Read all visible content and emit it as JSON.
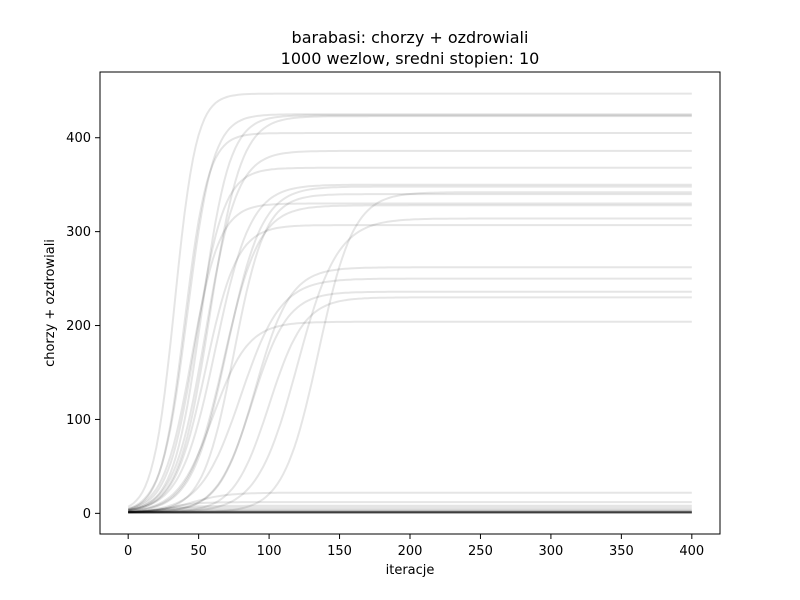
{
  "chart_data": {
    "type": "line",
    "title": [
      "barabasi: chorzy + ozdrowiali",
      "1000 wezlow, sredni stopien: 10"
    ],
    "xlabel": "iteracje",
    "ylabel": "chorzy + ozdrowiali",
    "xlim": [
      -20,
      420
    ],
    "ylim": [
      -22,
      470
    ],
    "xticks": [
      0,
      50,
      100,
      150,
      200,
      250,
      300,
      350,
      400
    ],
    "yticks": [
      0,
      100,
      200,
      300,
      400
    ],
    "grid": false,
    "legend": "none",
    "line_color": "#000000",
    "line_alpha": 0.1,
    "n_points": 400,
    "series": [
      {
        "final": 447,
        "midpoint": 33,
        "rate": 0.13
      },
      {
        "final": 425,
        "midpoint": 42,
        "rate": 0.11
      },
      {
        "final": 423,
        "midpoint": 58,
        "rate": 0.09
      },
      {
        "final": 424,
        "midpoint": 52,
        "rate": 0.1
      },
      {
        "final": 405,
        "midpoint": 40,
        "rate": 0.12
      },
      {
        "final": 386,
        "midpoint": 55,
        "rate": 0.09
      },
      {
        "final": 368,
        "midpoint": 48,
        "rate": 0.1
      },
      {
        "final": 350,
        "midpoint": 62,
        "rate": 0.08
      },
      {
        "final": 348,
        "midpoint": 70,
        "rate": 0.08
      },
      {
        "final": 342,
        "midpoint": 135,
        "rate": 0.08
      },
      {
        "final": 340,
        "midpoint": 75,
        "rate": 0.09
      },
      {
        "final": 330,
        "midpoint": 45,
        "rate": 0.1
      },
      {
        "final": 328,
        "midpoint": 68,
        "rate": 0.08
      },
      {
        "final": 314,
        "midpoint": 120,
        "rate": 0.07
      },
      {
        "final": 307,
        "midpoint": 55,
        "rate": 0.09
      },
      {
        "final": 262,
        "midpoint": 90,
        "rate": 0.08
      },
      {
        "final": 250,
        "midpoint": 80,
        "rate": 0.07
      },
      {
        "final": 236,
        "midpoint": 88,
        "rate": 0.08
      },
      {
        "final": 230,
        "midpoint": 100,
        "rate": 0.08
      },
      {
        "final": 204,
        "midpoint": 60,
        "rate": 0.08
      },
      {
        "final": 22,
        "midpoint": 45,
        "rate": 0.08
      },
      {
        "final": 12,
        "midpoint": 30,
        "rate": 0.1
      },
      {
        "final": 8,
        "midpoint": 25,
        "rate": 0.1
      },
      {
        "final": 6,
        "midpoint": 20,
        "rate": 0.12
      },
      {
        "final": 4,
        "midpoint": 15,
        "rate": 0.15
      },
      {
        "final": 3,
        "midpoint": 10,
        "rate": 0.2
      },
      {
        "final": 2,
        "midpoint": 8,
        "rate": 0.3
      },
      {
        "final": 2,
        "midpoint": 5,
        "rate": 0.3
      },
      {
        "final": 1,
        "midpoint": 1,
        "rate": 1.0
      },
      {
        "final": 1,
        "midpoint": 1,
        "rate": 1.0
      },
      {
        "final": 1,
        "midpoint": 1,
        "rate": 1.0
      },
      {
        "final": 1,
        "midpoint": 1,
        "rate": 1.0
      },
      {
        "final": 1,
        "midpoint": 1,
        "rate": 1.0
      },
      {
        "final": 1,
        "midpoint": 1,
        "rate": 1.0
      },
      {
        "final": 1,
        "midpoint": 1,
        "rate": 1.0
      },
      {
        "final": 1,
        "midpoint": 1,
        "rate": 1.0
      },
      {
        "final": 1,
        "midpoint": 1,
        "rate": 1.0
      },
      {
        "final": 1,
        "midpoint": 1,
        "rate": 1.0
      },
      {
        "final": 1,
        "midpoint": 1,
        "rate": 1.0
      },
      {
        "final": 1,
        "midpoint": 1,
        "rate": 1.0
      }
    ]
  }
}
